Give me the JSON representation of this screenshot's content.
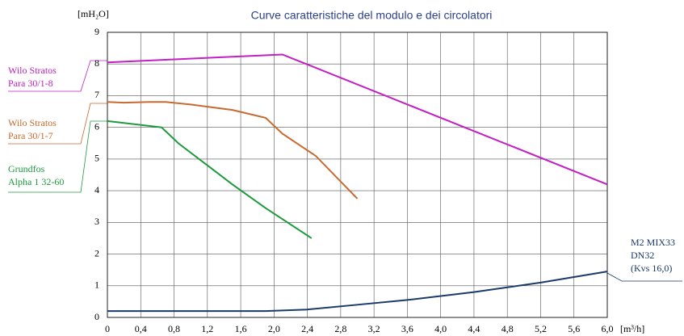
{
  "chart_data": {
    "type": "line",
    "title": "Curve caratteristiche del modulo e dei circolatori",
    "y_label": "[mH₂O]",
    "x_label": "[m³/h]",
    "xlim": [
      0,
      6.0
    ],
    "ylim": [
      0,
      9
    ],
    "xticks": [
      0,
      {
        "value": 0.4,
        "label": "0,4"
      },
      {
        "value": 0.8,
        "label": "0,8"
      },
      {
        "value": 1.2,
        "label": "1,2"
      },
      {
        "value": 1.6,
        "label": "1,6"
      },
      {
        "value": 2.0,
        "label": "2,0"
      },
      {
        "value": 2.4,
        "label": "2,4"
      },
      {
        "value": 2.8,
        "label": "2,8"
      },
      {
        "value": 3.2,
        "label": "3,2"
      },
      {
        "value": 3.6,
        "label": "3,6"
      },
      {
        "value": 4.0,
        "label": "4,0"
      },
      {
        "value": 4.4,
        "label": "4,4"
      },
      {
        "value": 4.8,
        "label": "4,8"
      },
      {
        "value": 5.2,
        "label": "5,2"
      },
      {
        "value": 5.6,
        "label": "5,6"
      },
      {
        "value": 6.0,
        "label": "6,0"
      }
    ],
    "yticks": [
      0,
      1,
      2,
      3,
      4,
      5,
      6,
      7,
      8,
      9
    ],
    "grid": true,
    "series": [
      {
        "name": [
          "Wilo Stratos",
          "Para 30/1-8"
        ],
        "color": "#c21fc4",
        "x": [
          0,
          2.1,
          6.0
        ],
        "values": [
          8.05,
          8.3,
          4.2
        ]
      },
      {
        "name": [
          "Wilo Stratos",
          "Para 30/1-7"
        ],
        "color": "#c8692e",
        "x": [
          0,
          0.2,
          0.5,
          0.7,
          1.0,
          1.5,
          1.9,
          2.1,
          2.5,
          3.0
        ],
        "values": [
          6.8,
          6.78,
          6.8,
          6.8,
          6.72,
          6.55,
          6.3,
          5.8,
          5.1,
          3.75
        ]
      },
      {
        "name": [
          "Grundfos",
          "Alpha 1 32-60"
        ],
        "color": "#1c9a3c",
        "x": [
          0,
          0.65,
          0.85,
          1.2,
          1.5,
          1.9,
          2.45
        ],
        "values": [
          6.2,
          6.0,
          5.5,
          4.8,
          4.2,
          3.45,
          2.5
        ]
      },
      {
        "name": [
          "M2 MIX33",
          "DN32",
          "(Kvs 16,0)"
        ],
        "color": "#1a3a6a",
        "x": [
          0,
          1.9,
          2.4,
          3.0,
          3.6,
          4.4,
          5.2,
          6.0
        ],
        "values": [
          0.2,
          0.2,
          0.25,
          0.4,
          0.55,
          0.8,
          1.1,
          1.45
        ]
      }
    ]
  }
}
